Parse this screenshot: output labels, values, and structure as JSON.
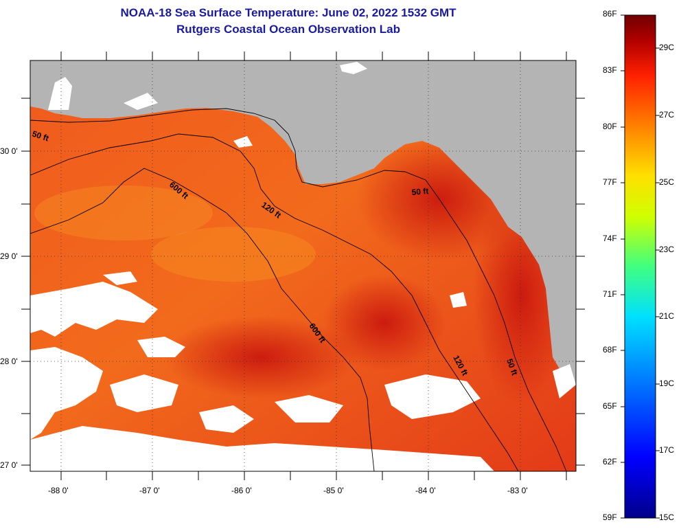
{
  "header": {
    "title_line1": "NOAA-18 Sea Surface Temperature:  June 02, 2022 1532 GMT",
    "title_line2": "Rutgers Coastal Ocean Observation Lab"
  },
  "map": {
    "lat_labels": [
      "30 0'",
      "29 0'",
      "28 0'",
      "27 0'"
    ],
    "lon_labels": [
      "-88 0'",
      "-87 0'",
      "-86 0'",
      "-85 0'",
      "-84 0'",
      "-83 0'"
    ],
    "contour_labels": [
      "50 ft",
      "600 ft",
      "120 ft",
      "50 ft",
      "600 ft",
      "120 ft",
      "50 ft"
    ],
    "colors": {
      "land": "#b4b4b4",
      "cloud": "#ffffff",
      "sea_warm": "#e8401a"
    }
  },
  "colorbar": {
    "fahrenheit_labels": [
      "86F",
      "83F",
      "80F",
      "77F",
      "74F",
      "71F",
      "68F",
      "65F",
      "62F",
      "59F"
    ],
    "celsius_labels": [
      "29C",
      "27C",
      "25C",
      "23C",
      "21C",
      "19C",
      "17C",
      "15C"
    ],
    "colors": [
      "#00008a",
      "#0000ff",
      "#0080ff",
      "#00e0ff",
      "#40ff80",
      "#d0ff00",
      "#ffe000",
      "#ff8000",
      "#ff2000",
      "#b00000",
      "#700000"
    ]
  }
}
